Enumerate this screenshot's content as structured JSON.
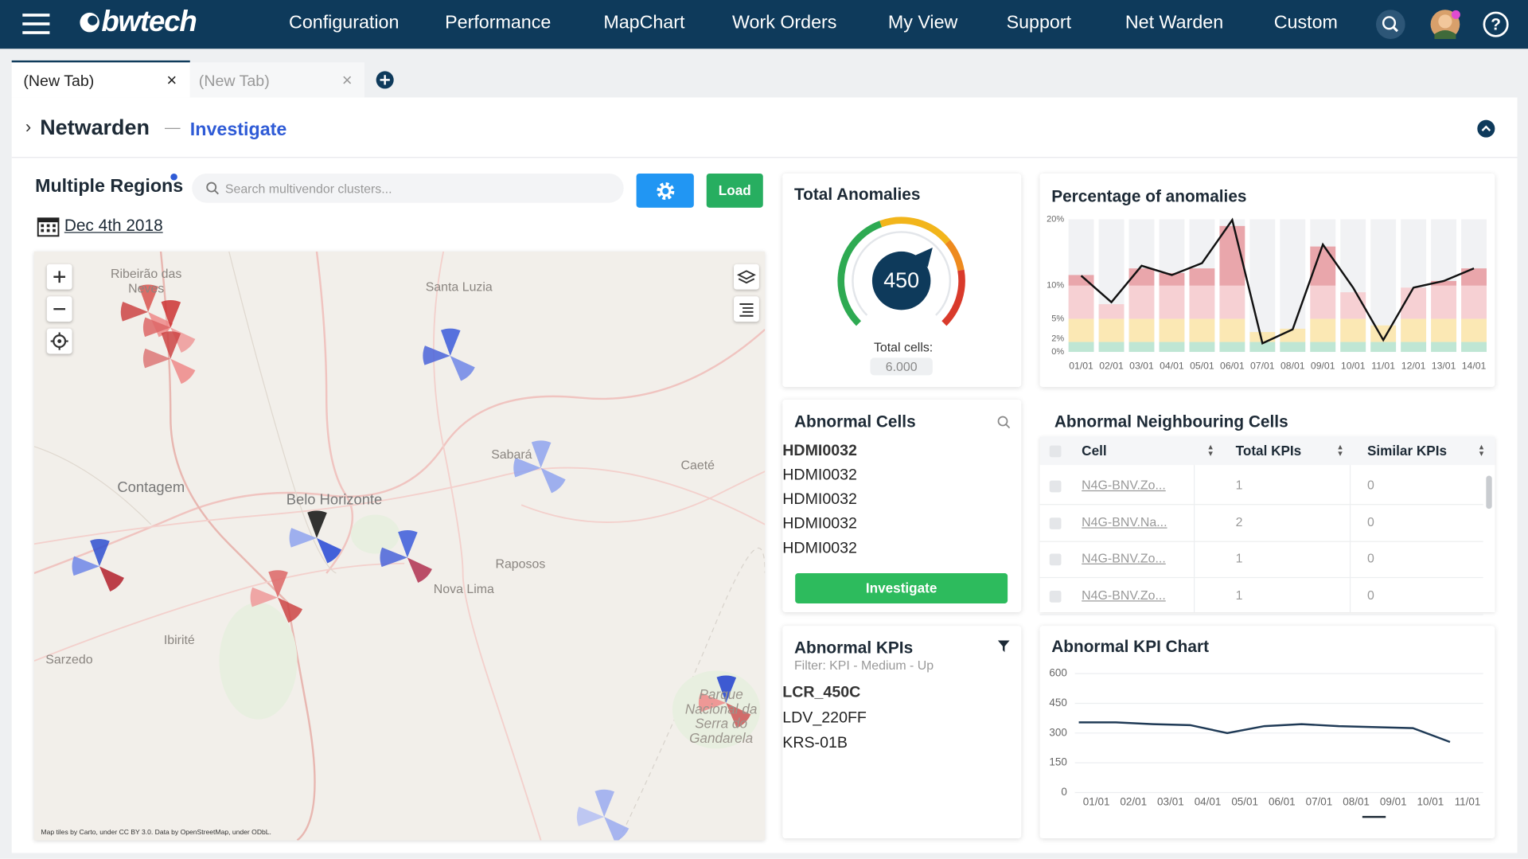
{
  "nav": {
    "logo": "bwtech",
    "items": [
      "Configuration",
      "Performance",
      "MapChart",
      "Work Orders",
      "My View",
      "Support",
      "Net Warden",
      "Custom"
    ]
  },
  "tabs": [
    "(New Tab)",
    "(New Tab)"
  ],
  "header": {
    "title": "Netwarden",
    "separator": "—",
    "subtitle": "Investigate"
  },
  "regions": {
    "title": "Multiple Regions",
    "search_placeholder": "Search multivendor clusters...",
    "load": "Load",
    "date": "Dec 4th 2018"
  },
  "map": {
    "labels": [
      "Ribeirão das Neves",
      "Santa Luzia",
      "Contagem",
      "Belo Horizonte",
      "Sabará",
      "Caeté",
      "Raposos",
      "Nova Lima",
      "Ibirité",
      "Sarzedo",
      "Parque Nacional da Serra do Gandarela"
    ],
    "attribution": "Map tiles by Carto, under CC BY 3.0. Data by OpenStreetMap, under ODbL."
  },
  "total_anomalies": {
    "title": "Total Anomalies",
    "value": 450,
    "cells_label": "Total cells:",
    "cells": "6.000"
  },
  "abnormal_cells": {
    "title": "Abnormal Cells",
    "items": [
      "HDMI0032",
      "HDMI0032",
      "HDMI0032",
      "HDMI0032",
      "HDMI0032"
    ],
    "button": "Investigate"
  },
  "neighbours": {
    "title": "Abnormal Neighbouring Cells",
    "table": {
      "columns": [
        "Cell",
        "Total KPIs",
        "Similar KPIs"
      ],
      "rows": [
        [
          "N4G-BNV.Zo...",
          "1",
          "0"
        ],
        [
          "N4G-BNV.Na...",
          "2",
          "0"
        ],
        [
          "N4G-BNV.Zo...",
          "1",
          "0"
        ],
        [
          "N4G-BNV.Zo...",
          "1",
          "0"
        ]
      ]
    }
  },
  "abnormal_kpis": {
    "title": "Abnormal KPIs",
    "filter": "Filter: KPI - Medium - Up",
    "items": [
      "LCR_450C",
      "LDV_220FF",
      "KRS-01B"
    ]
  },
  "chart_data": [
    {
      "type": "bar",
      "title": "Percentage of anomalies",
      "stacked": true,
      "categories": [
        "01/01",
        "02/01",
        "03/01",
        "04/01",
        "05/01",
        "06/01",
        "07/01",
        "08/01",
        "09/01",
        "10/01",
        "11/01",
        "12/01",
        "13/01",
        "14/01"
      ],
      "series": [
        {
          "color": "#bfe6d4",
          "values": [
            1.5,
            1.5,
            1.5,
            1.5,
            1.5,
            1.5,
            1.5,
            1.5,
            1.5,
            1.5,
            1.5,
            1.5,
            1.5,
            1.5
          ]
        },
        {
          "color": "#fbe8b4",
          "values": [
            3.5,
            3.5,
            3.5,
            3.5,
            3.5,
            3.5,
            1.5,
            2,
            3.5,
            3.5,
            2.5,
            3.5,
            3.5,
            3.5
          ]
        },
        {
          "color": "#f6d0d3",
          "values": [
            5,
            2.2,
            5,
            5,
            5,
            5,
            0,
            0,
            5,
            4,
            0,
            4.7,
            5,
            5
          ]
        },
        {
          "color": "#e9a6ab",
          "values": [
            1.6,
            0,
            2.6,
            1.9,
            2.6,
            9,
            0,
            0,
            5.9,
            0,
            0,
            0,
            0.7,
            2.6
          ]
        },
        {
          "type": "line",
          "color": "#111111",
          "values": [
            11.5,
            7.5,
            13,
            11.6,
            13.4,
            19.9,
            1.3,
            3.4,
            16.2,
            9.7,
            1.8,
            9.7,
            10.7,
            12.6
          ]
        }
      ],
      "ylim": [
        0,
        20
      ],
      "yticks": [
        {
          "value": 0,
          "label": "0%"
        },
        {
          "value": 2,
          "label": "2%"
        },
        {
          "value": 5,
          "label": "5%"
        },
        {
          "value": 10,
          "label": "10%"
        },
        {
          "value": 20,
          "label": "20%"
        }
      ],
      "grid": false
    },
    {
      "type": "line",
      "title": "Abnormal KPI Chart",
      "categories": [
        "01/01",
        "02/01",
        "03/01",
        "04/01",
        "05/01",
        "06/01",
        "07/01",
        "08/01",
        "09/01",
        "10/01",
        "11/01"
      ],
      "values": [
        354,
        354,
        345,
        340,
        300,
        335,
        345,
        335,
        330,
        325,
        255
      ],
      "color": "#1f3a56",
      "ylim": [
        0,
        600
      ],
      "yticks": [
        0,
        150,
        300,
        450,
        600
      ],
      "grid": true
    }
  ]
}
